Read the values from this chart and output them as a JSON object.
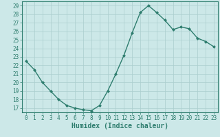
{
  "x": [
    0,
    1,
    2,
    3,
    4,
    5,
    6,
    7,
    8,
    9,
    10,
    11,
    12,
    13,
    14,
    15,
    16,
    17,
    18,
    19,
    20,
    21,
    22,
    23
  ],
  "y": [
    22.5,
    21.5,
    20.0,
    19.0,
    18.0,
    17.3,
    17.0,
    16.8,
    16.7,
    17.3,
    19.0,
    21.0,
    23.2,
    25.8,
    28.2,
    29.0,
    28.2,
    27.3,
    26.2,
    26.5,
    26.3,
    25.2,
    24.8,
    24.2
  ],
  "line_color": "#2e7d6e",
  "marker": "D",
  "marker_size": 2.0,
  "bg_color": "#cce8e8",
  "grid_color": "#aacece",
  "xlabel": "Humidex (Indice chaleur)",
  "xlabel_fontsize": 7,
  "xlim": [
    -0.5,
    23.5
  ],
  "ylim": [
    16.5,
    29.5
  ],
  "yticks": [
    17,
    18,
    19,
    20,
    21,
    22,
    23,
    24,
    25,
    26,
    27,
    28,
    29
  ],
  "xticks": [
    0,
    1,
    2,
    3,
    4,
    5,
    6,
    7,
    8,
    9,
    10,
    11,
    12,
    13,
    14,
    15,
    16,
    17,
    18,
    19,
    20,
    21,
    22,
    23
  ],
  "tick_fontsize": 5.5,
  "line_width": 1.0
}
